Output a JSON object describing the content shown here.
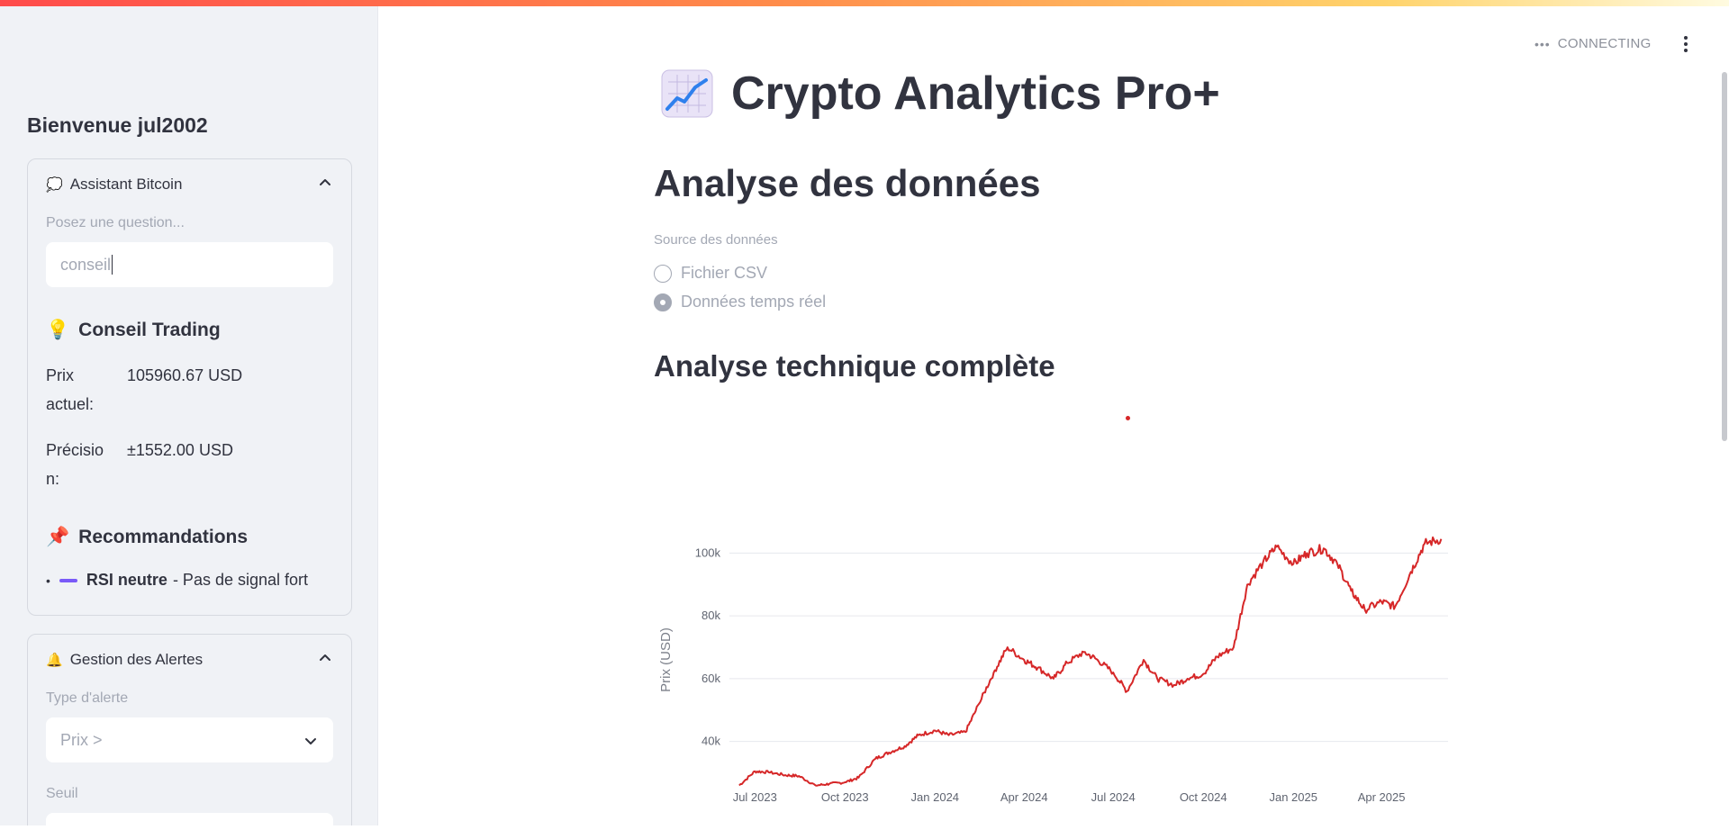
{
  "colors": {
    "accent_line": "#d62728",
    "sidebar_bg": "#f0f2f6",
    "rec_dash": "#7a5af8"
  },
  "sidebar": {
    "welcome": "Bienvenue jul2002",
    "assistant": {
      "emoji": "💭",
      "title": "Assistant Bitcoin",
      "question_label": "Posez une question...",
      "question_value": "conseil",
      "advice": {
        "emoji": "💡",
        "heading": "Conseil Trading",
        "price_key_line1": "Prix",
        "price_key_line2": "actuel:",
        "price_value": "105960.67 USD",
        "precision_key_line1": "Précisio",
        "precision_key_line2": "n:",
        "precision_value": "±1552.00 USD"
      },
      "recommendations": {
        "emoji": "📌",
        "heading": "Recommandations",
        "items": [
          {
            "bold": "RSI neutre",
            "rest": "- Pas de signal fort"
          }
        ]
      }
    },
    "alerts": {
      "emoji": "🔔",
      "title": "Gestion des Alertes",
      "type_label": "Type d'alerte",
      "type_value": "Prix >",
      "threshold_label": "Seuil"
    }
  },
  "header": {
    "status": "CONNECTING",
    "status_icon": "ellipsis-icon",
    "menu_icon": "kebab-menu-icon"
  },
  "main": {
    "title_icon": "chart-increasing-icon",
    "title": "Crypto Analytics Pro+",
    "section_title": "Analyse des données",
    "source_label": "Source des données",
    "source_options": [
      {
        "label": "Fichier CSV",
        "selected": false
      },
      {
        "label": "Données temps réel",
        "selected": true
      }
    ],
    "subsection_title": "Analyse technique complète"
  },
  "chart_data": {
    "type": "line",
    "title": "",
    "xlabel": "",
    "ylabel": "Prix (USD)",
    "x_tick_labels": [
      "Jul 2023",
      "Oct 2023",
      "Jan 2024",
      "Apr 2024",
      "Jul 2024",
      "Oct 2024",
      "Jan 2025",
      "Apr 2025"
    ],
    "y_tick_labels": [
      "40k",
      "60k",
      "80k",
      "100k"
    ],
    "y_ticks": [
      40000,
      60000,
      80000,
      100000
    ],
    "ylim": [
      25000,
      107000
    ],
    "grid": true,
    "series": [
      {
        "color": "#d62728",
        "x": [
          "2023-06-15",
          "2023-07-01",
          "2023-07-15",
          "2023-08-01",
          "2023-08-15",
          "2023-09-01",
          "2023-09-15",
          "2023-10-01",
          "2023-10-15",
          "2023-11-01",
          "2023-11-15",
          "2023-12-01",
          "2023-12-15",
          "2024-01-01",
          "2024-01-15",
          "2024-02-01",
          "2024-02-15",
          "2024-03-01",
          "2024-03-15",
          "2024-04-01",
          "2024-04-15",
          "2024-05-01",
          "2024-05-15",
          "2024-06-01",
          "2024-06-15",
          "2024-07-01",
          "2024-07-15",
          "2024-08-01",
          "2024-08-15",
          "2024-09-01",
          "2024-09-15",
          "2024-10-01",
          "2024-10-15",
          "2024-11-01",
          "2024-11-15",
          "2024-12-01",
          "2024-12-15",
          "2025-01-01",
          "2025-01-15",
          "2025-02-01",
          "2025-02-15",
          "2025-03-01",
          "2025-03-15",
          "2025-04-01",
          "2025-04-15",
          "2025-05-01",
          "2025-05-15",
          "2025-06-01"
        ],
        "y": [
          26000,
          30500,
          30200,
          29300,
          29000,
          26000,
          26500,
          27000,
          28500,
          34500,
          36500,
          38500,
          42000,
          43500,
          42000,
          43000,
          52000,
          62000,
          70000,
          66000,
          63500,
          60000,
          65000,
          68500,
          66000,
          62000,
          56000,
          66000,
          60000,
          58000,
          60000,
          61500,
          67000,
          70000,
          90000,
          97000,
          102000,
          96500,
          100000,
          101500,
          96500,
          88000,
          82000,
          84500,
          83000,
          94000,
          103000,
          104500
        ]
      }
    ]
  }
}
